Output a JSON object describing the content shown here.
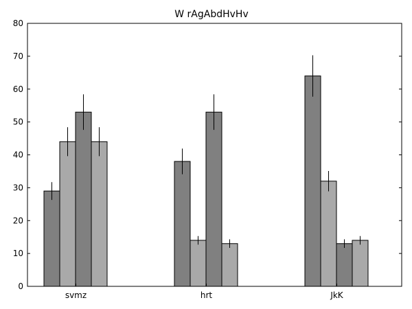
{
  "chart_data": {
    "type": "bar",
    "title": "W rAgAbdHvHv",
    "xlabel": "",
    "ylabel": "",
    "ylim": [
      0,
      80
    ],
    "yticks": [
      0,
      10,
      20,
      30,
      40,
      50,
      60,
      70,
      80
    ],
    "categories": [
      "svmz",
      "hrt",
      "JkK"
    ],
    "grid": false,
    "series": [
      {
        "values": [
          29,
          38,
          64
        ],
        "errors": [
          2.7,
          3.9,
          6.3
        ],
        "color": "#808080"
      },
      {
        "values": [
          44,
          14,
          32
        ],
        "errors": [
          4.4,
          1.3,
          3.1
        ],
        "color": "#a9a9a9"
      },
      {
        "values": [
          53,
          53,
          13
        ],
        "errors": [
          5.4,
          5.4,
          1.3
        ],
        "color": "#808080"
      },
      {
        "values": [
          44,
          13,
          14
        ],
        "errors": [
          4.4,
          1.3,
          1.3
        ],
        "color": "#a9a9a9"
      }
    ]
  }
}
